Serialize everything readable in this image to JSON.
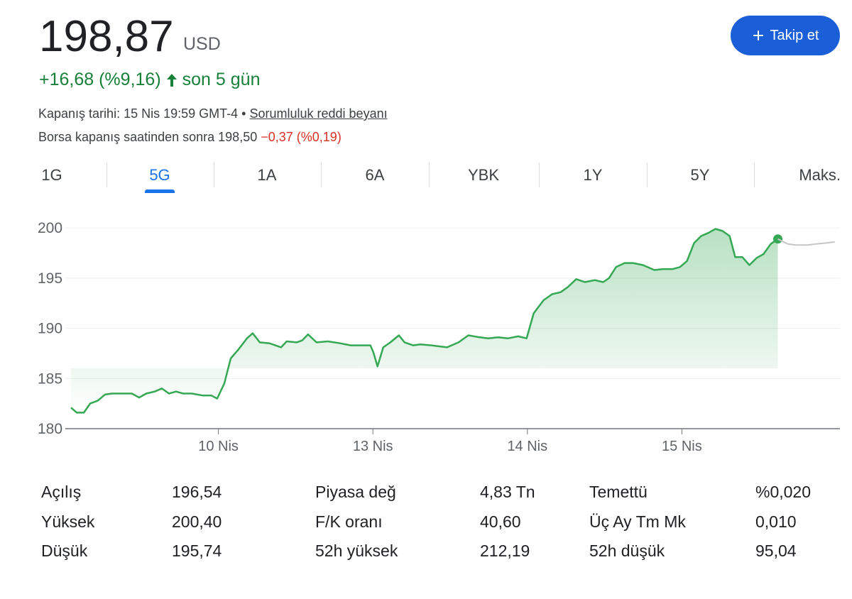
{
  "header": {
    "price": "198,87",
    "currency": "USD",
    "change": "+16,68 (%9,16)",
    "period": "son 5 gün",
    "close_info": "Kapanış tarihi: 15 Nis 19:59 GMT-4",
    "separator": "•",
    "disclaimer": "Sorumluluk reddi beyanı",
    "after_hours_label": "Borsa kapanış saatinden sonra 198,50",
    "after_hours_change": "−0,37 (%0,19)",
    "follow_button": "Takip et"
  },
  "tabs": {
    "items": [
      "1G",
      "5G",
      "1A",
      "6A",
      "YBK",
      "1Y",
      "5Y",
      "Maks."
    ],
    "selected": 1
  },
  "chart_data": {
    "type": "line",
    "xlim": [
      0,
      500
    ],
    "xticks": [
      {
        "value": 100,
        "label": "10 Nis"
      },
      {
        "value": 200,
        "label": "13 Nis"
      },
      {
        "value": 300,
        "label": "14 Nis"
      },
      {
        "value": 400,
        "label": "15 Nis"
      }
    ],
    "ylim": [
      180,
      201
    ],
    "yticks": [
      180,
      185,
      190,
      195,
      200
    ],
    "grid": true,
    "series": [
      {
        "color": "#34a853",
        "x": [
          4.6,
          8.3,
          12.9,
          17,
          22,
          26.6,
          31.2,
          36.7,
          44,
          48.7,
          53.3,
          58.8,
          63.4,
          68,
          72.6,
          77.2,
          82.7,
          90,
          95.5,
          99.2,
          103.8,
          108,
          113,
          118.5,
          122.2,
          126.8,
          133.2,
          140.6,
          144.2,
          150.7,
          154.3,
          158,
          163.5,
          170.9,
          179.1,
          185.6,
          192.9,
          198.4,
          200.3,
          203,
          206.7,
          211.3,
          216.8,
          220.5,
          226,
          230.6,
          237.9,
          248,
          255.4,
          261.8,
          269.2,
          274.7,
          281.1,
          287.6,
          294,
          299.5,
          304.1,
          310.5,
          316,
          321.5,
          326.1,
          331.6,
          337.2,
          343.6,
          349.1,
          352.8,
          357.4,
          362.9,
          368.4,
          374.8,
          382.2,
          387.7,
          394.1,
          398.7,
          403.3,
          407.9,
          412.5,
          417.1,
          421.7,
          426.3,
          430.9,
          434.5,
          439.1,
          443.7,
          448.3,
          452.9,
          457.5,
          462.1
        ],
        "values": [
          182.1,
          181.6,
          181.6,
          182.5,
          182.8,
          183.4,
          183.5,
          183.5,
          183.5,
          183.1,
          183.5,
          183.7,
          184.0,
          183.5,
          183.7,
          183.5,
          183.5,
          183.3,
          183.3,
          183.0,
          184.5,
          187.0,
          187.9,
          189.0,
          189.5,
          188.6,
          188.5,
          188.1,
          188.7,
          188.6,
          188.8,
          189.4,
          188.6,
          188.7,
          188.5,
          188.3,
          188.3,
          188.3,
          187.6,
          186.2,
          188.1,
          188.6,
          189.3,
          188.6,
          188.3,
          188.4,
          188.3,
          188.1,
          188.6,
          189.3,
          189.1,
          189.0,
          189.1,
          189.0,
          189.2,
          189.0,
          191.5,
          192.8,
          193.4,
          193.6,
          194.1,
          194.9,
          194.6,
          194.8,
          194.6,
          195.0,
          196.1,
          196.5,
          196.5,
          196.3,
          195.8,
          195.9,
          195.9,
          196.1,
          196.7,
          198.5,
          199.2,
          199.5,
          199.9,
          199.7,
          199.2,
          197.1,
          197.1,
          196.3,
          197.0,
          197.4,
          198.4,
          198.9
        ]
      },
      {
        "color": "#c4c7c5",
        "x": [
          462.1,
          468.5,
          474,
          481.4,
          486.9,
          493.4,
          499
        ],
        "values": [
          198.9,
          198.4,
          198.3,
          198.3,
          198.4,
          198.5,
          198.6
        ]
      }
    ]
  },
  "stats": {
    "rows": [
      [
        "Açılış",
        "196,54",
        "Piyasa değ",
        "4,83 Tn",
        "Temettü",
        "%0,020"
      ],
      [
        "Yüksek",
        "200,40",
        "F/K oranı",
        "40,60",
        "Üç Ay Tm Mk",
        "0,010"
      ],
      [
        "Düşük",
        "195,74",
        "52h yüksek",
        "212,19",
        "52h düşük",
        "95,04"
      ]
    ]
  }
}
